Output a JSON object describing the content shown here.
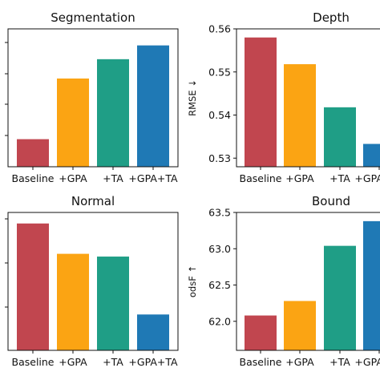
{
  "colors": [
    "#c1464f",
    "#fba413",
    "#1f9e86",
    "#1f79b5"
  ],
  "chart_data": [
    {
      "type": "bar",
      "title": "Segmentation",
      "categories": [
        "Baseline",
        "+GPA",
        "+TA",
        "+GPA+TA"
      ],
      "values": [
        0.2,
        0.64,
        0.78,
        0.88
      ],
      "ylim": [
        0,
        1
      ],
      "yticks": [],
      "ylabel": ""
    },
    {
      "type": "bar",
      "title": "Depth",
      "categories": [
        "Baseline",
        "+GPA",
        "+TA",
        "+GPA+TA"
      ],
      "values": [
        0.558,
        0.5518,
        0.5418,
        0.5333
      ],
      "ylim": [
        0.528,
        0.56
      ],
      "yticks": [
        "0.53",
        "0.54",
        "0.55",
        "0.56"
      ],
      "ylabel": "RMSE ↓"
    },
    {
      "type": "bar",
      "title": "Normal",
      "categories": [
        "Baseline",
        "+GPA",
        "+TA",
        "+GPA+TA"
      ],
      "values": [
        0.92,
        0.7,
        0.68,
        0.26
      ],
      "ylim": [
        0,
        1
      ],
      "yticks": [],
      "ylabel": ""
    },
    {
      "type": "bar",
      "title": "Bound",
      "categories": [
        "Baseline",
        "+GPA",
        "+TA",
        "+GPA+TA"
      ],
      "values": [
        62.08,
        62.28,
        63.04,
        63.38
      ],
      "ylim": [
        61.6,
        63.5
      ],
      "yticks": [
        "62.0",
        "62.5",
        "63.0",
        "63.5"
      ],
      "ylabel": "odsF ↑"
    }
  ]
}
